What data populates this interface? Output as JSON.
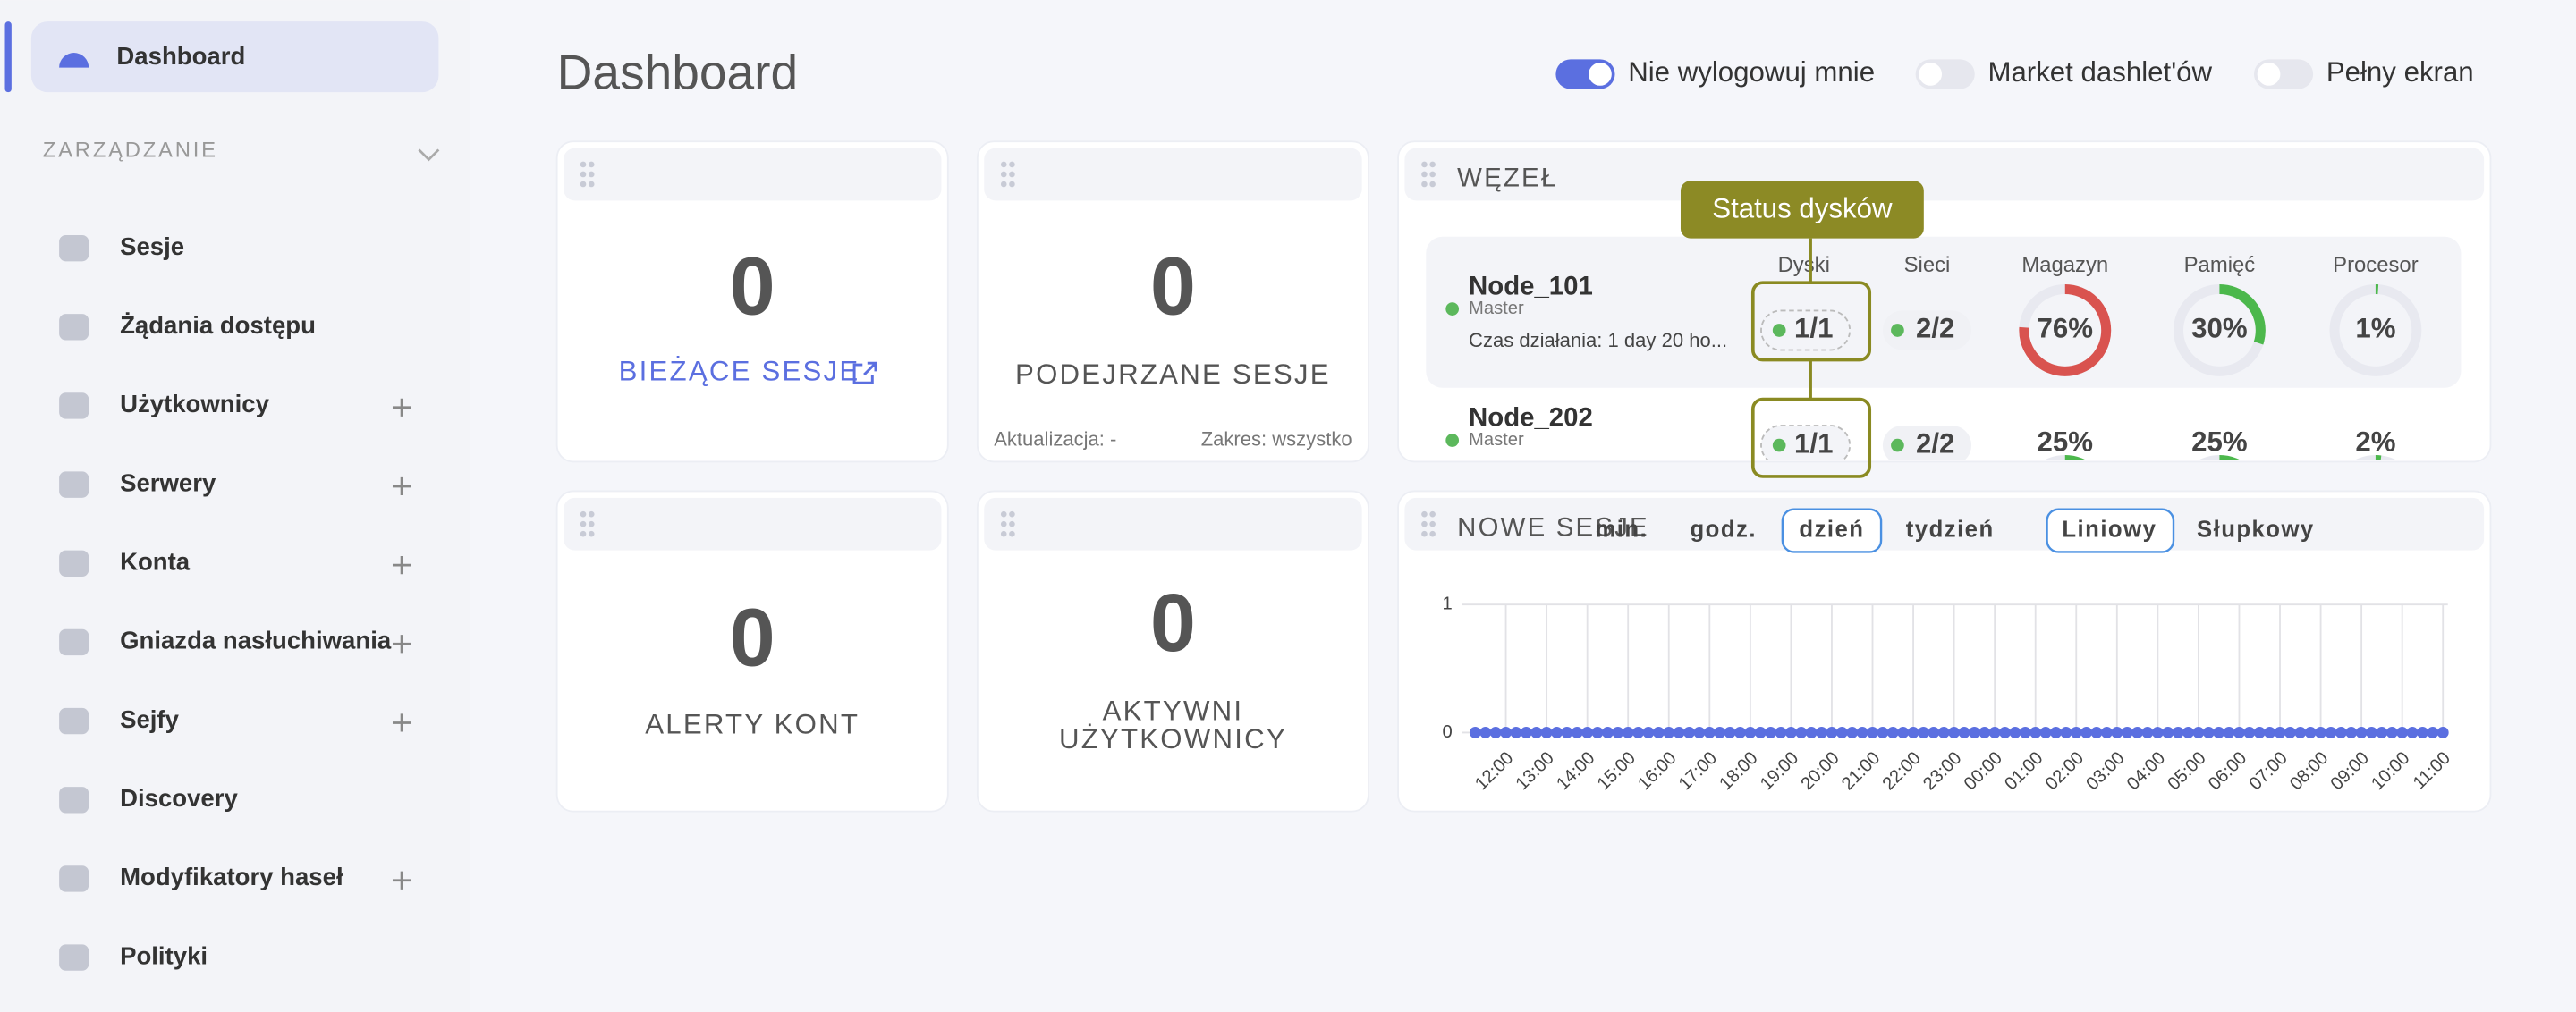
{
  "sidebar": {
    "active": "Dashboard",
    "section": "ZARZĄDZANIE",
    "items": [
      {
        "label": "Sesje",
        "expandable": false
      },
      {
        "label": "Żądania dostępu",
        "expandable": false
      },
      {
        "label": "Użytkownicy",
        "expandable": true
      },
      {
        "label": "Serwery",
        "expandable": true
      },
      {
        "label": "Konta",
        "expandable": true
      },
      {
        "label": "Gniazda nasłuchiwania",
        "expandable": true
      },
      {
        "label": "Sejfy",
        "expandable": true
      },
      {
        "label": "Discovery",
        "expandable": false
      },
      {
        "label": "Modyfikatory haseł",
        "expandable": true
      },
      {
        "label": "Polityki",
        "expandable": false
      }
    ]
  },
  "header": {
    "title": "Dashboard",
    "toggles": [
      {
        "label": "Nie wylogowuj mnie",
        "on": true
      },
      {
        "label": "Market dashlet'ów",
        "on": false
      },
      {
        "label": "Pełny ekran",
        "on": false
      }
    ]
  },
  "counters": [
    {
      "value": 0,
      "lines": [
        "BIEŻĄCE SESJE"
      ]
    },
    {
      "value": 0,
      "lines": [
        "PODEJRZANE SESJE"
      ],
      "updated": "Aktualizacja: -",
      "range": "Zakres: wszystko"
    },
    {
      "value": 0,
      "lines": [
        "ALERTY KONT"
      ]
    },
    {
      "value": 0,
      "lines": [
        "AKTYWNI",
        "UŻYTKOWNICY"
      ]
    }
  ],
  "node": {
    "title": "WĘZEŁ",
    "tooltip": "Status dysków",
    "columns": [
      "Dyski",
      "Sieci",
      "Magazyn",
      "Pamięć",
      "Procesor"
    ],
    "nodes": [
      {
        "name": "Node_101",
        "role": "Master",
        "uptime": "Czas działania: 1 day 20 ho...",
        "disks": "1/1",
        "network": "2/2",
        "storage": {
          "value": 76,
          "label": "76%",
          "color": "#d9534f"
        },
        "memory": {
          "value": 30,
          "label": "30%",
          "color": "#4cb84c"
        },
        "cpu": {
          "value": 1,
          "label": "1%",
          "color": "#4cb84c"
        }
      },
      {
        "name": "Node_202",
        "role": "Master",
        "disks": "1/1",
        "network": "2/2",
        "storage": {
          "value": 25,
          "label": "25%",
          "color": "#4cb84c"
        },
        "memory": {
          "value": 25,
          "label": "25%",
          "color": "#4cb84c"
        },
        "cpu": {
          "value": 2,
          "label": "2%",
          "color": "#4cb84c"
        }
      }
    ]
  },
  "sessions": {
    "title": "NOWE SESJE",
    "ranges": [
      "min.",
      "godz.",
      "dzień",
      "tydzień"
    ],
    "active_range": "dzień",
    "views": [
      "Liniowy",
      "Słupkowy"
    ],
    "active_view": "Liniowy",
    "chart": {
      "type": "line",
      "color": "#5b6fe0",
      "ylim": [
        0,
        1
      ],
      "yticks": [
        0,
        1
      ],
      "grid": true,
      "x": [
        null,
        null,
        null,
        "12:00",
        null,
        null,
        null,
        "13:00",
        null,
        null,
        null,
        "14:00",
        null,
        null,
        null,
        "15:00",
        null,
        null,
        null,
        "16:00",
        null,
        null,
        null,
        "17:00",
        null,
        null,
        null,
        "18:00",
        null,
        null,
        null,
        "19:00",
        null,
        null,
        null,
        "20:00",
        null,
        null,
        null,
        "21:00",
        null,
        null,
        null,
        "22:00",
        null,
        null,
        null,
        "23:00",
        null,
        null,
        null,
        "00:00",
        null,
        null,
        null,
        "01:00",
        null,
        null,
        null,
        "02:00",
        null,
        null,
        null,
        "03:00",
        null,
        null,
        null,
        "04:00",
        null,
        null,
        null,
        "05:00",
        null,
        null,
        null,
        "06:00",
        null,
        null,
        null,
        "07:00",
        null,
        null,
        null,
        "08:00",
        null,
        null,
        null,
        "09:00",
        null,
        null,
        null,
        "10:00",
        null,
        null,
        null,
        "11:00"
      ],
      "values": [
        0,
        0,
        0,
        0,
        0,
        0,
        0,
        0,
        0,
        0,
        0,
        0,
        0,
        0,
        0,
        0,
        0,
        0,
        0,
        0,
        0,
        0,
        0,
        0,
        0,
        0,
        0,
        0,
        0,
        0,
        0,
        0,
        0,
        0,
        0,
        0,
        0,
        0,
        0,
        0,
        0,
        0,
        0,
        0,
        0,
        0,
        0,
        0,
        0,
        0,
        0,
        0,
        0,
        0,
        0,
        0,
        0,
        0,
        0,
        0,
        0,
        0,
        0,
        0,
        0,
        0,
        0,
        0,
        0,
        0,
        0,
        0,
        0,
        0,
        0,
        0,
        0,
        0,
        0,
        0,
        0,
        0,
        0,
        0,
        0,
        0,
        0,
        0,
        0,
        0,
        0,
        0,
        0,
        0,
        0,
        0
      ]
    }
  }
}
